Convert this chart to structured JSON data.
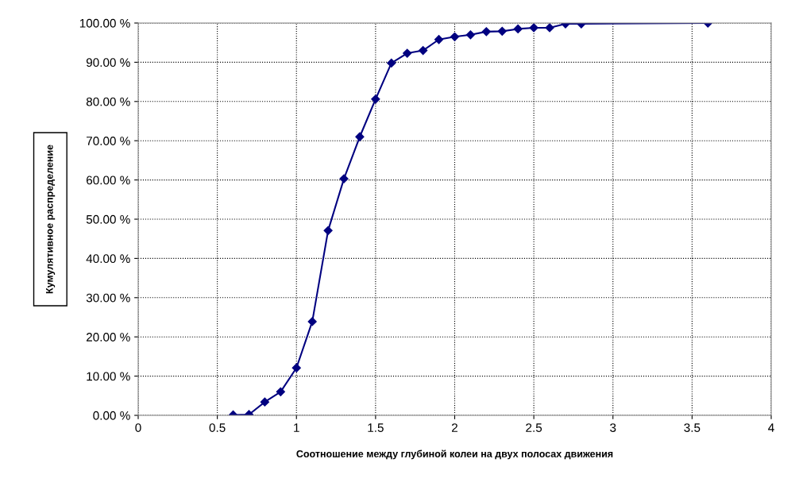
{
  "chart_data": {
    "type": "line",
    "xlabel": "Соотношение между глубиной колеи на двух полосах движения",
    "ylabel": "Кумулятивное распределение",
    "x": [
      0.6,
      0.7,
      0.8,
      0.9,
      1.0,
      1.1,
      1.2,
      1.3,
      1.4,
      1.5,
      1.6,
      1.7,
      1.8,
      1.9,
      2.0,
      2.1,
      2.2,
      2.3,
      2.4,
      2.5,
      2.6,
      2.7,
      2.8,
      3.6
    ],
    "series": [
      {
        "color": "#000080",
        "values": [
          0.1,
          0.2,
          3.4,
          6,
          12.1,
          23.9,
          47.1,
          60.3,
          71,
          80.6,
          89.8,
          92.3,
          93,
          95.8,
          96.5,
          97,
          97.8,
          97.9,
          98.5,
          98.8,
          98.8,
          99.8,
          99.8,
          100
        ]
      }
    ],
    "xlim": [
      0,
      4
    ],
    "xticks": [
      0,
      0.5,
      1,
      1.5,
      2,
      2.5,
      3,
      3.5,
      4
    ],
    "ylim": [
      0,
      100
    ],
    "yticks": [
      {
        "value": 0,
        "label": "0.00 %"
      },
      {
        "value": 10,
        "label": "10.00 %"
      },
      {
        "value": 20,
        "label": "20.00 %"
      },
      {
        "value": 30,
        "label": "30.00 %"
      },
      {
        "value": 40,
        "label": "40.00 %"
      },
      {
        "value": 50,
        "label": "50.00 %"
      },
      {
        "value": 60,
        "label": "60.00 %"
      },
      {
        "value": 70,
        "label": "70.00 %"
      },
      {
        "value": 80,
        "label": "80.00 %"
      },
      {
        "value": 90,
        "label": "90.00 %"
      },
      {
        "value": 100,
        "label": "100.00 %"
      }
    ],
    "grid": true,
    "marker": "diamond",
    "line_style": "solid",
    "legend": false
  }
}
